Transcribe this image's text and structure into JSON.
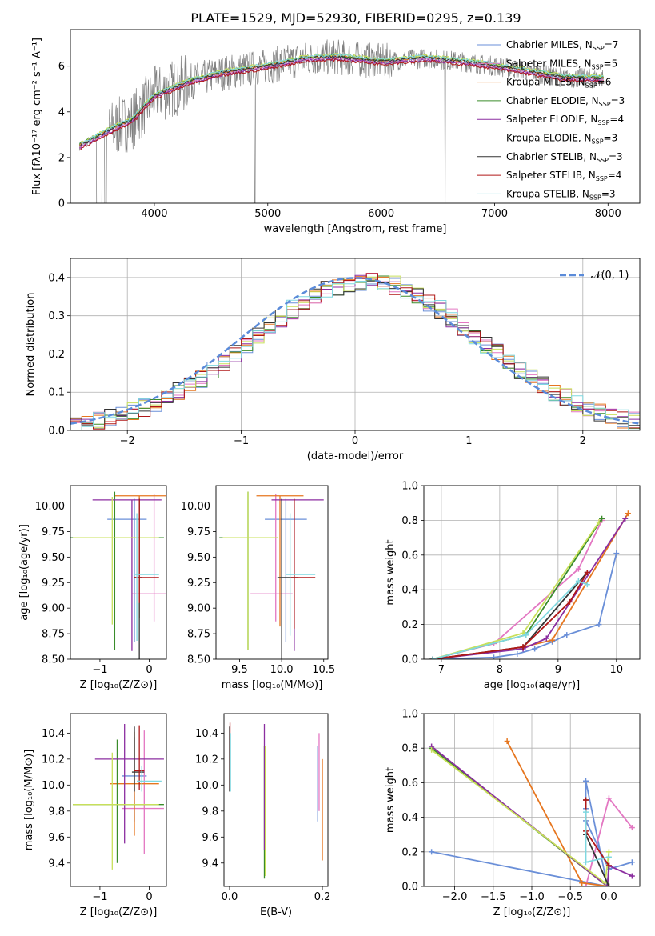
{
  "figure": {
    "title": "PLATE=1529, MJD=52930, FIBERID=0295, z=0.139"
  },
  "chart_data": [
    {
      "id": "spectrum",
      "type": "line",
      "xlabel": "wavelength [Angstrom, rest frame]",
      "ylabel": "Flux [fλ10⁻¹⁷ erg cm⁻² s⁻¹ A⁻¹]",
      "xlim": [
        3260,
        8280
      ],
      "ylim": [
        0,
        7.6
      ],
      "xticks": [
        4000,
        5000,
        6000,
        7000,
        8000
      ],
      "yticks": [
        0,
        2,
        4,
        6
      ],
      "grid": false,
      "legend_position": "top-right",
      "data_series": {
        "name": "",
        "color": "#808080"
      },
      "model_x": [
        3340,
        3500,
        3650,
        3800,
        4000,
        4300,
        4600,
        5000,
        5300,
        5600,
        6000,
        6400,
        6800,
        7200,
        7600,
        7900
      ],
      "model_y": [
        2.5,
        2.9,
        3.3,
        3.6,
        4.7,
        5.3,
        5.7,
        6.0,
        6.3,
        6.4,
        6.2,
        6.35,
        6.15,
        5.85,
        5.5,
        5.45
      ],
      "series": [
        {
          "name": "Chabrier MILES, N",
          "sub": "SSP",
          "tail": "=7",
          "color": "#6a8fd8"
        },
        {
          "name": "Salpeter MILES, N",
          "sub": "SSP",
          "tail": "=5",
          "color": "#e377c2"
        },
        {
          "name": "Kroupa MILES, N",
          "sub": "SSP",
          "tail": "=6",
          "color": "#e6761f"
        },
        {
          "name": "Chabrier ELODIE, N",
          "sub": "SSP",
          "tail": "=3",
          "color": "#3a8c2a"
        },
        {
          "name": "Salpeter ELODIE, N",
          "sub": "SSP",
          "tail": "=4",
          "color": "#8c2ea0"
        },
        {
          "name": "Kroupa ELODIE, N",
          "sub": "SSP",
          "tail": "=3",
          "color": "#c8e05a"
        },
        {
          "name": "Chabrier STELIB, N",
          "sub": "SSP",
          "tail": "=3",
          "color": "#333333"
        },
        {
          "name": "Salpeter STELIB, N",
          "sub": "SSP",
          "tail": "=4",
          "color": "#b01818"
        },
        {
          "name": "Kroupa STELIB, N",
          "sub": "SSP",
          "tail": "=3",
          "color": "#7fd8e0"
        }
      ],
      "offsets": [
        0.0,
        -0.05,
        0.05,
        0.08,
        -0.08,
        0.12,
        0.03,
        -0.12,
        0.1
      ]
    },
    {
      "id": "residuals",
      "type": "line",
      "xlabel": "(data-model)/error",
      "ylabel": "Normed distribution",
      "xlim": [
        -2.5,
        2.5
      ],
      "ylim": [
        0,
        0.45
      ],
      "xticks": [
        -2,
        -1,
        0,
        1,
        2
      ],
      "yticks": [
        0.0,
        0.1,
        0.2,
        0.3,
        0.4
      ],
      "grid": true,
      "legend_position": "top-right",
      "gaussian_label": "𝒩(0, 1)",
      "gaussian_color": "#5b8bd9",
      "bin_width": 0.1
    },
    {
      "id": "age_vs_Z",
      "type": "scatter",
      "xlabel": "Z [log₁₀(Z/Z⊙)]",
      "ylabel": "age  [log₁₀(age/yr)]",
      "xlim": [
        -1.6,
        0.35
      ],
      "ylim": [
        8.5,
        10.2
      ],
      "xticks": [
        -1,
        0
      ],
      "yticks": [
        8.5,
        8.75,
        9.0,
        9.25,
        9.5,
        9.75,
        10.0
      ],
      "points": [
        {
          "x": -0.3,
          "xerr": [
            0.55,
            0.25
          ],
          "y": 9.87,
          "yerr": [
            1.2,
            0.2
          ],
          "color": "#6a8fd8"
        },
        {
          "x": 0.1,
          "xerr": [
            0.45,
            0.25
          ],
          "y": 9.14,
          "yerr": [
            0.27,
            0.98
          ],
          "color": "#e377c2"
        },
        {
          "x": -0.2,
          "xerr": [
            0.5,
            0.6
          ],
          "y": 10.1,
          "yerr": [
            1.2,
            0.0
          ],
          "color": "#e6761f"
        },
        {
          "x": -0.7,
          "xerr": [
            0.9,
            1.0
          ],
          "y": 9.69,
          "yerr": [
            1.1,
            0.45
          ],
          "color": "#3a8c2a"
        },
        {
          "x": -0.35,
          "xerr": [
            0.8,
            0.6
          ],
          "y": 10.06,
          "yerr": [
            1.48,
            0.0
          ],
          "color": "#8c2ea0"
        },
        {
          "x": -0.75,
          "xerr": [
            0.8,
            0.95
          ],
          "y": 9.69,
          "yerr": [
            0.85,
            0.4
          ],
          "color": "#c8e05a"
        },
        {
          "x": -0.2,
          "xerr": [
            0.1,
            0.05
          ],
          "y": 9.3,
          "yerr": [
            0.8,
            0.77
          ],
          "color": "#333333"
        },
        {
          "x": -0.2,
          "xerr": [
            0.1,
            0.4
          ],
          "y": 9.3,
          "yerr": [
            0.25,
            0.77
          ],
          "color": "#b01818"
        },
        {
          "x": -0.25,
          "xerr": [
            0.05,
            0.45
          ],
          "y": 9.33,
          "yerr": [
            0.65,
            0.6
          ],
          "color": "#7fd8e0"
        }
      ]
    },
    {
      "id": "age_vs_mass",
      "type": "scatter",
      "xlabel": "mass [log₁₀(M/M⊙)]",
      "ylabel": "",
      "xlim": [
        9.22,
        10.55
      ],
      "ylim": [
        8.5,
        10.2
      ],
      "xticks": [
        9.5,
        10.0,
        10.5
      ],
      "yticks": [
        8.5,
        8.75,
        9.0,
        9.25,
        9.5,
        9.75,
        10.0
      ],
      "points": [
        {
          "x": 10.05,
          "xerr": [
            0.25,
            0.25
          ],
          "y": 9.87,
          "yerr": [
            1.2,
            0.2
          ],
          "color": "#6a8fd8"
        },
        {
          "x": 9.93,
          "xerr": [
            0.3,
            0.2
          ],
          "y": 9.14,
          "yerr": [
            0.27,
            0.98
          ],
          "color": "#e377c2"
        },
        {
          "x": 9.98,
          "xerr": [
            0.28,
            0.28
          ],
          "y": 10.1,
          "yerr": [
            1.28,
            0.0
          ],
          "color": "#e6761f"
        },
        {
          "x": 9.6,
          "xerr": [
            0.34,
            0.36
          ],
          "y": 9.69,
          "yerr": [
            1.1,
            0.45
          ],
          "color": "#3a8c2a"
        },
        {
          "x": 10.15,
          "xerr": [
            0.27,
            0.35
          ],
          "y": 10.06,
          "yerr": [
            1.48,
            0.0
          ],
          "color": "#8c2ea0"
        },
        {
          "x": 9.6,
          "xerr": [
            0.3,
            0.35
          ],
          "y": 9.69,
          "yerr": [
            1.1,
            0.45
          ],
          "color": "#c8e05a"
        },
        {
          "x": 10.0,
          "xerr": [
            0.05,
            0.2
          ],
          "y": 9.3,
          "yerr": [
            0.8,
            0.77
          ],
          "color": "#333333"
        },
        {
          "x": 10.15,
          "xerr": [
            0.05,
            0.25
          ],
          "y": 9.3,
          "yerr": [
            0.5,
            0.77
          ],
          "color": "#b01818"
        },
        {
          "x": 10.1,
          "xerr": [
            0.05,
            0.3
          ],
          "y": 9.33,
          "yerr": [
            0.6,
            0.6
          ],
          "color": "#7fd8e0"
        }
      ]
    },
    {
      "id": "mass_weight_vs_age",
      "type": "line",
      "xlabel": "age  [log₁₀(age/yr)]",
      "ylabel": "mass weight",
      "xlim": [
        6.7,
        10.4
      ],
      "ylim": [
        0,
        1.0
      ],
      "xticks": [
        7,
        8,
        9,
        10
      ],
      "yticks": [
        0.0,
        0.2,
        0.4,
        0.6,
        0.8,
        1.0
      ],
      "grid": true,
      "series": [
        {
          "color": "#6a8fd8",
          "x": [
            6.85,
            7.9,
            8.3,
            8.6,
            8.9,
            9.15,
            9.7,
            10.0
          ],
          "y": [
            0.0,
            0.01,
            0.03,
            0.06,
            0.1,
            0.14,
            0.2,
            0.61
          ]
        },
        {
          "color": "#e377c2",
          "x": [
            6.85,
            7.9,
            9.35,
            9.75
          ],
          "y": [
            0.0,
            0.09,
            0.52,
            0.8
          ]
        },
        {
          "color": "#e6761f",
          "x": [
            6.85,
            8.4,
            8.9,
            10.2
          ],
          "y": [
            0.0,
            0.07,
            0.11,
            0.84
          ]
        },
        {
          "color": "#3a8c2a",
          "x": [
            6.85,
            8.45,
            9.75
          ],
          "y": [
            0.0,
            0.14,
            0.81
          ]
        },
        {
          "color": "#8c2ea0",
          "x": [
            6.85,
            8.4,
            8.8,
            10.15
          ],
          "y": [
            0.0,
            0.06,
            0.12,
            0.81
          ]
        },
        {
          "color": "#c8e05a",
          "x": [
            6.85,
            8.4,
            9.7
          ],
          "y": [
            0.0,
            0.15,
            0.79
          ]
        },
        {
          "color": "#333333",
          "x": [
            6.85,
            8.4,
            9.5
          ],
          "y": [
            0.0,
            0.07,
            0.5
          ]
        },
        {
          "color": "#b01818",
          "x": [
            6.85,
            8.4,
            9.2,
            9.5
          ],
          "y": [
            0.0,
            0.07,
            0.33,
            0.5
          ]
        },
        {
          "color": "#7fd8e0",
          "x": [
            6.85,
            8.45,
            9.35,
            9.5
          ],
          "y": [
            0.0,
            0.14,
            0.45,
            0.43
          ]
        }
      ]
    },
    {
      "id": "mass_vs_Z",
      "type": "scatter",
      "xlabel": "Z [log₁₀(Z/Z⊙)]",
      "ylabel": "mass [log₁₀(M/M⊙)]",
      "xlim": [
        -1.6,
        0.35
      ],
      "ylim": [
        9.22,
        10.55
      ],
      "xticks": [
        -1,
        0
      ],
      "yticks": [
        9.4,
        9.6,
        9.8,
        10.0,
        10.2,
        10.4
      ],
      "points": [
        {
          "x": -0.3,
          "xerr": [
            0.25,
            0.25
          ],
          "y": 10.07,
          "yerr": [
            0.35,
            0.3
          ],
          "color": "#6a8fd8"
        },
        {
          "x": -0.1,
          "xerr": [
            0.45,
            0.4
          ],
          "y": 9.82,
          "yerr": [
            0.35,
            0.6
          ],
          "color": "#e377c2"
        },
        {
          "x": -0.3,
          "xerr": [
            0.5,
            0.5
          ],
          "y": 10.01,
          "yerr": [
            0.4,
            0.4
          ],
          "color": "#e6761f"
        },
        {
          "x": -0.65,
          "xerr": [
            0.9,
            0.95
          ],
          "y": 9.85,
          "yerr": [
            0.45,
            0.5
          ],
          "color": "#3a8c2a"
        },
        {
          "x": -0.5,
          "xerr": [
            0.6,
            0.8
          ],
          "y": 10.2,
          "yerr": [
            0.65,
            0.27
          ],
          "color": "#8c2ea0"
        },
        {
          "x": -0.75,
          "xerr": [
            0.8,
            0.95
          ],
          "y": 9.85,
          "yerr": [
            0.5,
            0.4
          ],
          "color": "#c8e05a"
        },
        {
          "x": -0.3,
          "xerr": [
            0.05,
            0.2
          ],
          "y": 10.1,
          "yerr": [
            0.15,
            0.35
          ],
          "color": "#333333"
        },
        {
          "x": -0.2,
          "xerr": [
            0.1,
            0.1
          ],
          "y": 10.11,
          "yerr": [
            0.15,
            0.35
          ],
          "color": "#b01818"
        },
        {
          "x": -0.15,
          "xerr": [
            0.1,
            0.4
          ],
          "y": 10.03,
          "yerr": [
            0.08,
            0.12
          ],
          "color": "#7fd8e0"
        }
      ]
    },
    {
      "id": "mass_vs_EBV",
      "type": "scatter",
      "xlabel": "E(B-V)",
      "ylabel": "",
      "xlim": [
        -0.012,
        0.212
      ],
      "ylim": [
        9.22,
        10.55
      ],
      "xticks": [
        0.0,
        0.2
      ],
      "yticks": [
        9.4,
        9.6,
        9.8,
        10.0,
        10.2,
        10.4
      ],
      "points": [
        {
          "x": 0.19,
          "yl": 9.72,
          "yh": 10.3,
          "color": "#6a8fd8"
        },
        {
          "x": 0.193,
          "yl": 9.8,
          "yh": 10.4,
          "color": "#e377c2"
        },
        {
          "x": 0.2,
          "yl": 9.42,
          "yh": 10.2,
          "color": "#e6761f"
        },
        {
          "x": 0.075,
          "yl": 9.28,
          "yh": 10.3,
          "color": "#3a8c2a"
        },
        {
          "x": 0.075,
          "yl": 9.5,
          "yh": 10.47,
          "color": "#8c2ea0"
        },
        {
          "x": 0.077,
          "yl": 9.3,
          "yh": 10.3,
          "color": "#c8e05a"
        },
        {
          "x": 0.0,
          "yl": 9.95,
          "yh": 10.45,
          "color": "#333333"
        },
        {
          "x": 0.001,
          "yl": 9.97,
          "yh": 10.48,
          "color": "#b01818"
        },
        {
          "x": 0.002,
          "yl": 9.95,
          "yh": 10.4,
          "color": "#7fd8e0"
        }
      ]
    },
    {
      "id": "mass_weight_vs_Z",
      "type": "line",
      "xlabel": "Z [log₁₀(Z/Z⊙)]",
      "ylabel": "mass weight",
      "xlim": [
        -2.4,
        0.4
      ],
      "ylim": [
        0,
        1.0
      ],
      "xticks": [
        -2.0,
        -1.5,
        -1.0,
        -0.5,
        0.0
      ],
      "yticks": [
        0.0,
        0.2,
        0.4,
        0.6,
        0.8,
        1.0
      ],
      "grid": true,
      "series": [
        {
          "color": "#6a8fd8",
          "x": [
            -2.3,
            -0.02,
            -0.3,
            -0.3,
            -0.3,
            0.0,
            0.3
          ],
          "y": [
            0.2,
            0.0,
            0.61,
            0.45,
            0.38,
            0.1,
            0.14
          ]
        },
        {
          "color": "#e377c2",
          "x": [
            -0.3,
            0.0,
            0.3
          ],
          "y": [
            0.0,
            0.51,
            0.34
          ]
        },
        {
          "color": "#e6761f",
          "x": [
            -1.32,
            -0.35,
            0.0
          ],
          "y": [
            0.84,
            0.02,
            0.0
          ]
        },
        {
          "color": "#3a8c2a",
          "x": [
            -2.3,
            -0.02,
            0.0
          ],
          "y": [
            0.8,
            0.0,
            0.12
          ]
        },
        {
          "color": "#8c2ea0",
          "x": [
            -2.3,
            -0.02,
            0.0,
            0.3
          ],
          "y": [
            0.81,
            0.0,
            0.12,
            0.06
          ]
        },
        {
          "color": "#c8e05a",
          "x": [
            -2.3,
            -0.05,
            0.0
          ],
          "y": [
            0.79,
            0.02,
            0.2
          ]
        },
        {
          "color": "#333333",
          "x": [
            -0.3,
            -0.3,
            0.0
          ],
          "y": [
            0.5,
            0.3,
            0.0
          ]
        },
        {
          "color": "#b01818",
          "x": [
            -0.3,
            -0.3,
            0.0
          ],
          "y": [
            0.5,
            0.32,
            0.12
          ]
        },
        {
          "color": "#7fd8e0",
          "x": [
            -0.3,
            -0.3,
            0.0
          ],
          "y": [
            0.43,
            0.14,
            0.17
          ]
        }
      ]
    }
  ]
}
